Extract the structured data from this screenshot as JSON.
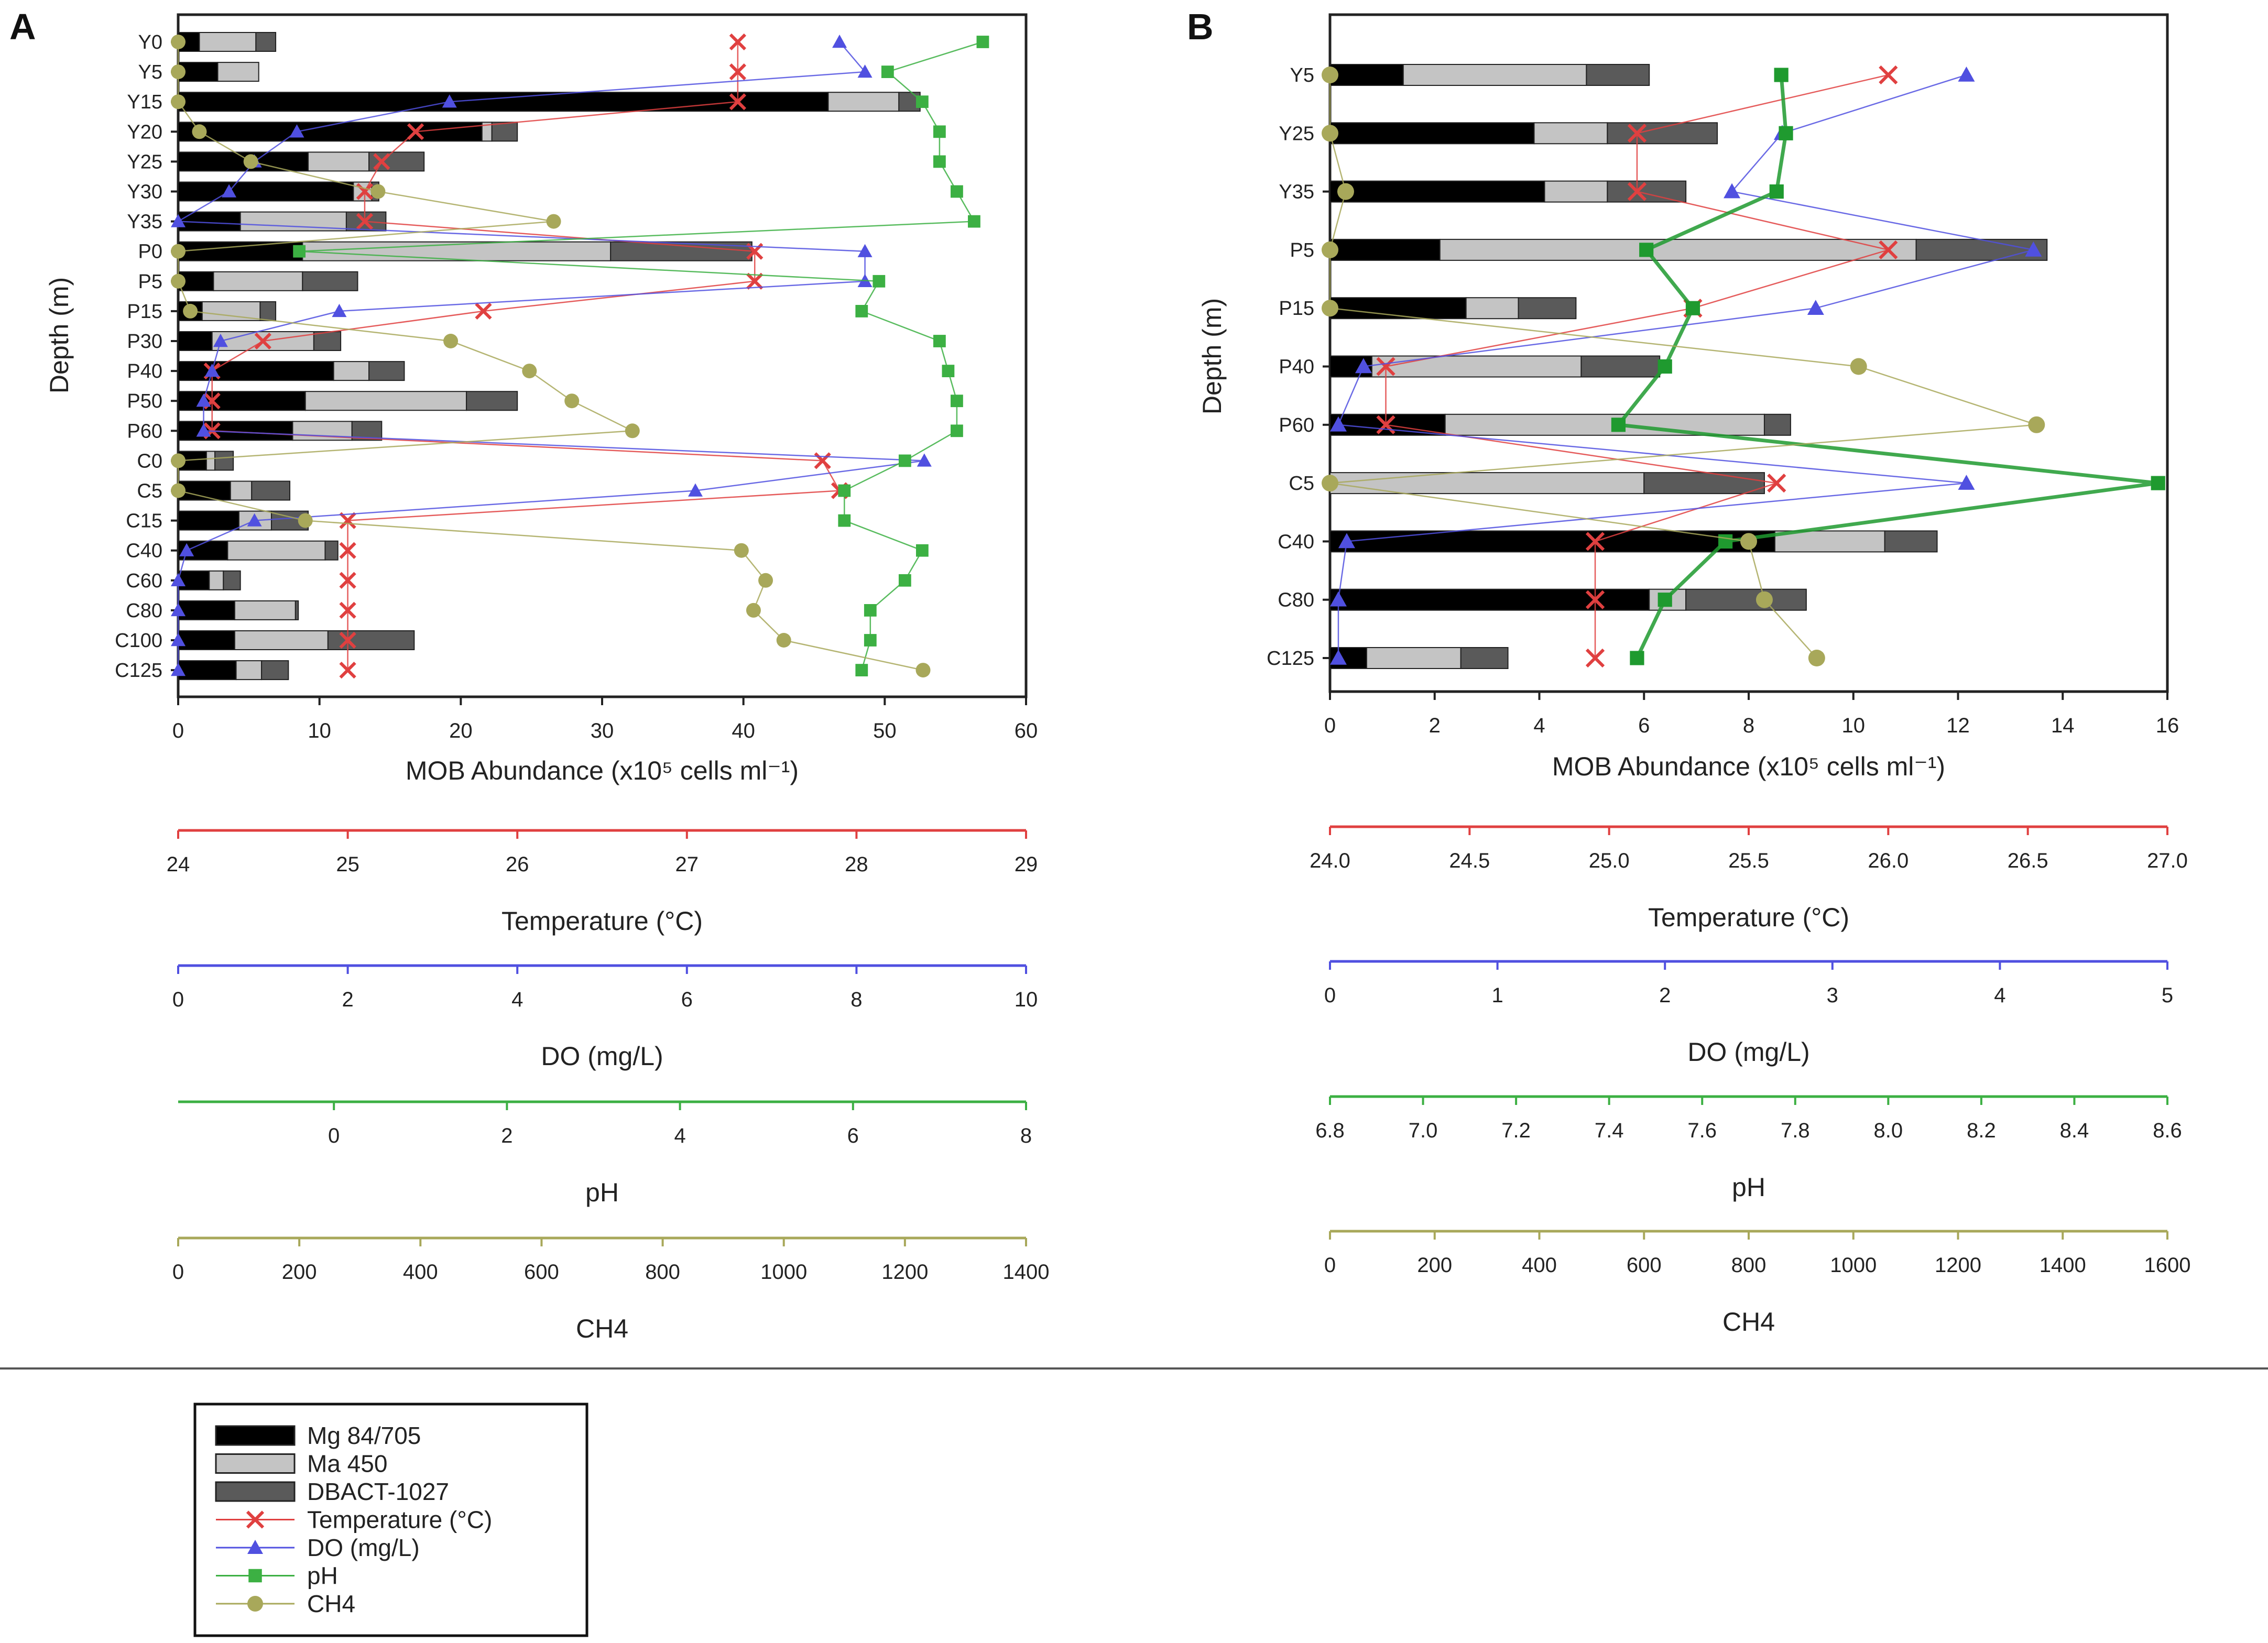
{
  "chart_data": [
    {
      "panel": "A",
      "type": "bar",
      "stacked": true,
      "orientation": "horizontal",
      "ylabel": "Depth (m)",
      "categories": [
        "Y0",
        "Y5",
        "Y15",
        "Y20",
        "Y25",
        "Y30",
        "Y35",
        "P0",
        "P5",
        "P15",
        "P30",
        "P40",
        "P50",
        "P60",
        "C0",
        "C5",
        "C15",
        "C40",
        "C60",
        "C80",
        "C100",
        "C125"
      ],
      "series": [
        {
          "name": "Mg 84/705",
          "color": "#000000",
          "values": [
            1.5,
            2.8,
            46,
            21.5,
            9.2,
            12.4,
            4.4,
            8.8,
            2.5,
            1.7,
            2.4,
            11,
            9,
            8.1,
            2,
            3.7,
            4.3,
            3.5,
            2.2,
            4,
            4,
            4.1
          ]
        },
        {
          "name": "Ma 450",
          "color": "#c4c4c4",
          "values": [
            4,
            2.9,
            5,
            0.7,
            4.3,
            1.3,
            7.5,
            21.8,
            6.3,
            4.1,
            7.2,
            2.5,
            11.4,
            4.2,
            0.6,
            1.5,
            2.3,
            6.9,
            1,
            4.3,
            6.6,
            1.8
          ]
        },
        {
          "name": "DBACT-1027",
          "color": "#5a5a5a",
          "values": [
            1.4,
            0,
            1.5,
            1.8,
            3.9,
            0.5,
            2.8,
            10,
            3.9,
            1.1,
            1.9,
            2.5,
            3.6,
            2.1,
            1.3,
            2.7,
            2.6,
            0.9,
            1.2,
            0.2,
            6.1,
            1.9
          ]
        }
      ],
      "lines": [
        {
          "name": "Temperature (°C)",
          "color": "#e04040",
          "marker": "x",
          "values": [
            27.3,
            27.3,
            27.3,
            25.4,
            25.2,
            25.1,
            25.1,
            27.4,
            27.4,
            25.8,
            24.5,
            24.2,
            24.2,
            24.2,
            27.8,
            27.9,
            25,
            25,
            25,
            25,
            25,
            25
          ]
        },
        {
          "name": "DO (mg/L)",
          "color": "#5050e0",
          "marker": "triangle",
          "values": [
            7.8,
            8.1,
            3.2,
            1.4,
            0.9,
            0.6,
            0,
            8.1,
            8.1,
            1.9,
            0.5,
            0.4,
            0.3,
            0.3,
            8.8,
            6.1,
            0.9,
            0.1,
            0,
            0,
            0,
            0
          ]
        },
        {
          "name": "pH",
          "color": "#3cb043",
          "marker": "square",
          "values": [
            7.5,
            6.4,
            6.8,
            7.0,
            7.0,
            7.2,
            7.4,
            -0.4,
            6.3,
            6.1,
            7.0,
            7.1,
            7.2,
            7.2,
            6.6,
            5.9,
            5.9,
            6.8,
            6.6,
            6.2,
            6.2,
            6.1
          ]
        },
        {
          "name": "CH4",
          "color": "#a8a85a",
          "marker": "circle",
          "values": [
            0,
            0,
            0,
            35,
            120,
            330,
            620,
            0,
            0,
            20,
            450,
            580,
            650,
            750,
            0,
            0,
            210,
            930,
            970,
            950,
            1000,
            1230
          ]
        }
      ],
      "axes": [
        {
          "title": "MOB Abundance (x10⁵ cells ml⁻¹)",
          "color": "#000000",
          "range": [
            0,
            60
          ],
          "ticks": [
            "0",
            "10",
            "20",
            "30",
            "40",
            "50",
            "60"
          ]
        },
        {
          "title": "Temperature (°C)",
          "color": "#e04040",
          "range": [
            24,
            29
          ],
          "ticks": [
            "24",
            "25",
            "26",
            "27",
            "28",
            "29"
          ]
        },
        {
          "title": "DO (mg/L)",
          "color": "#5050e0",
          "range": [
            0,
            10
          ],
          "ticks": [
            "0",
            "2",
            "4",
            "6",
            "8",
            "10"
          ]
        },
        {
          "title": "pH",
          "color": "#3cb043",
          "range": [
            -1.8,
            8
          ],
          "tick_values": [
            0,
            2,
            4,
            6,
            8
          ],
          "ticks": [
            "0",
            "2",
            "4",
            "6",
            "8"
          ]
        },
        {
          "title": "CH4",
          "color": "#a8a85a",
          "range": [
            0,
            1400
          ],
          "ticks": [
            "0",
            "200",
            "400",
            "600",
            "800",
            "1000",
            "1200",
            "1400"
          ]
        }
      ]
    },
    {
      "panel": "B",
      "type": "bar",
      "stacked": true,
      "orientation": "horizontal",
      "ylabel": "Depth (m)",
      "categories": [
        "Y5",
        "Y25",
        "Y35",
        "P5",
        "P15",
        "P40",
        "P60",
        "C5",
        "C40",
        "C80",
        "C125"
      ],
      "series": [
        {
          "name": "Mg 84/705",
          "color": "#000000",
          "values": [
            1.4,
            3.9,
            4.1,
            2.1,
            2.6,
            0.8,
            2.2,
            0,
            8.5,
            6.1,
            0.7
          ]
        },
        {
          "name": "Ma 450",
          "color": "#c4c4c4",
          "values": [
            3.5,
            1.4,
            1.2,
            9.1,
            1,
            4,
            6.1,
            6,
            2.1,
            0.7,
            1.8
          ]
        },
        {
          "name": "DBACT-1027",
          "color": "#5a5a5a",
          "values": [
            1.2,
            2.1,
            1.5,
            2.5,
            1.1,
            1.5,
            0.5,
            2.3,
            1,
            2.3,
            0.9
          ]
        }
      ],
      "lines": [
        {
          "name": "Temperature (°C)",
          "color": "#e04040",
          "marker": "x",
          "values": [
            26.0,
            25.1,
            25.1,
            26.0,
            25.3,
            24.2,
            24.2,
            25.6,
            24.95,
            24.95,
            24.95
          ]
        },
        {
          "name": "DO (mg/L)",
          "color": "#5050e0",
          "marker": "triangle",
          "values": [
            3.8,
            2.7,
            2.4,
            4.2,
            2.9,
            0.2,
            0.05,
            3.8,
            0.1,
            0.05,
            0.05
          ]
        },
        {
          "name": "pH",
          "color": "#1f9a2f",
          "marker": "square",
          "values": [
            7.77,
            7.78,
            7.76,
            7.48,
            7.58,
            7.52,
            7.42,
            8.58,
            7.65,
            7.52,
            7.46
          ]
        },
        {
          "name": "CH4",
          "color": "#a8a85a",
          "marker": "circle",
          "values": [
            0,
            0,
            30,
            0,
            0,
            1010,
            1350,
            0,
            800,
            830,
            930
          ]
        }
      ],
      "axes": [
        {
          "title": "MOB Abundance (x10⁵ cells ml⁻¹)",
          "color": "#000000",
          "range": [
            0,
            16
          ],
          "ticks": [
            "0",
            "2",
            "4",
            "6",
            "8",
            "10",
            "12",
            "14",
            "16"
          ]
        },
        {
          "title": "Temperature (°C)",
          "color": "#e04040",
          "range": [
            24,
            27
          ],
          "ticks": [
            "24.0",
            "24.5",
            "25.0",
            "25.5",
            "26.0",
            "26.5",
            "27.0"
          ]
        },
        {
          "title": "DO (mg/L)",
          "color": "#5050e0",
          "range": [
            0,
            5
          ],
          "ticks": [
            "0",
            "1",
            "2",
            "3",
            "4",
            "5"
          ]
        },
        {
          "title": "pH",
          "color": "#3cb043",
          "range": [
            6.8,
            8.6
          ],
          "ticks": [
            "6.8",
            "7.0",
            "7.2",
            "7.4",
            "7.6",
            "7.8",
            "8.0",
            "8.2",
            "8.4",
            "8.6"
          ]
        },
        {
          "title": "CH4",
          "color": "#a8a85a",
          "range": [
            0,
            1600
          ],
          "ticks": [
            "0",
            "200",
            "400",
            "600",
            "800",
            "1000",
            "1200",
            "1400",
            "1600"
          ]
        }
      ]
    }
  ],
  "legend": {
    "items": [
      {
        "label": "Mg 84/705",
        "kind": "bar",
        "color": "#000000"
      },
      {
        "label": "Ma 450",
        "kind": "bar",
        "color": "#c4c4c4"
      },
      {
        "label": "DBACT-1027",
        "kind": "bar",
        "color": "#5a5a5a"
      },
      {
        "label": "Temperature (°C)",
        "kind": "x",
        "color": "#e04040"
      },
      {
        "label": "DO (mg/L)",
        "kind": "triangle",
        "color": "#5050e0"
      },
      {
        "label": "pH",
        "kind": "square",
        "color": "#3cb043"
      },
      {
        "label": "CH4",
        "kind": "circle",
        "color": "#a8a85a"
      }
    ]
  }
}
